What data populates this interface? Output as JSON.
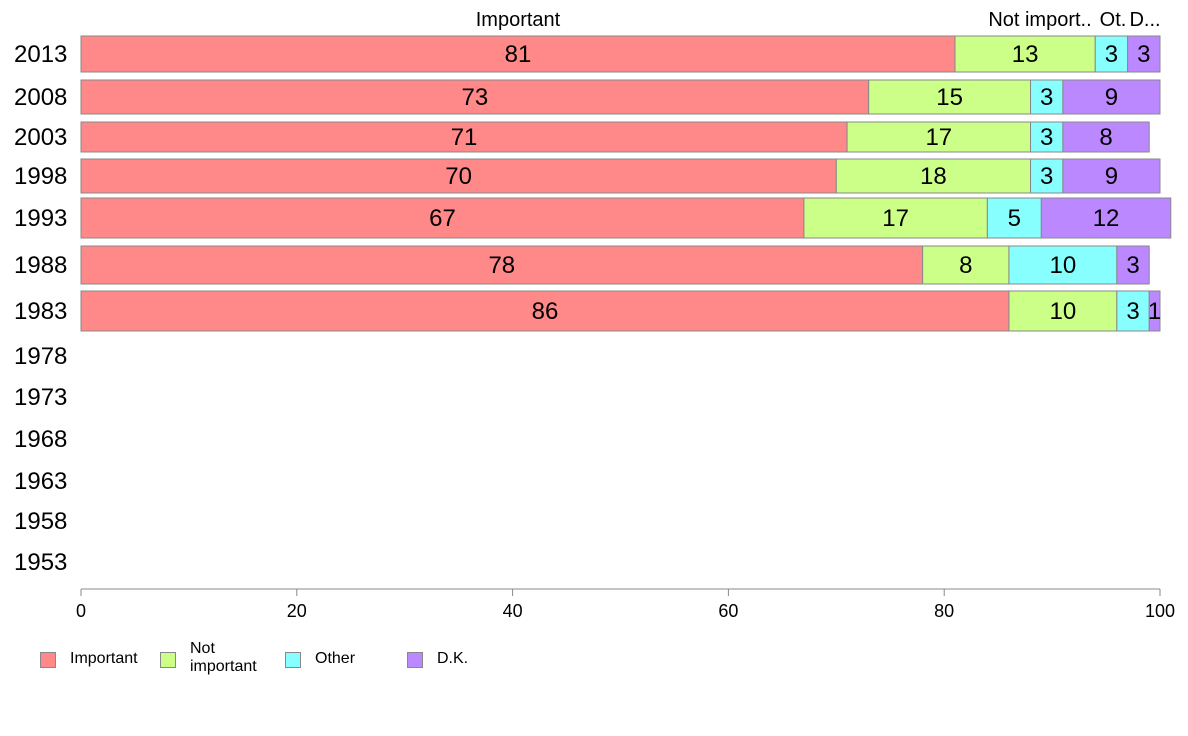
{
  "chart_data": {
    "type": "bar",
    "orientation": "horizontal",
    "stacked": true,
    "categories": [
      "2013",
      "2008",
      "2003",
      "1998",
      "1993",
      "1988",
      "1983",
      "1978",
      "1973",
      "1968",
      "1963",
      "1958",
      "1953"
    ],
    "series": [
      {
        "name": "Important",
        "color": "#ff8888",
        "values": [
          81,
          73,
          71,
          70,
          67,
          78,
          86,
          null,
          null,
          null,
          null,
          null,
          null
        ]
      },
      {
        "name": "Not important",
        "color": "#ccff88",
        "values": [
          13,
          15,
          17,
          18,
          17,
          8,
          10,
          null,
          null,
          null,
          null,
          null,
          null
        ]
      },
      {
        "name": "Other",
        "color": "#88ffff",
        "values": [
          3,
          3,
          3,
          3,
          5,
          10,
          3,
          null,
          null,
          null,
          null,
          null,
          null
        ]
      },
      {
        "name": "D.K.",
        "color": "#bb88ff",
        "values": [
          3,
          9,
          8,
          9,
          12,
          3,
          1,
          null,
          null,
          null,
          null,
          null,
          null
        ]
      }
    ],
    "column_headers": [
      "Important",
      "Not import..",
      "Ot.",
      "D..."
    ],
    "xlim": [
      0,
      100
    ],
    "xticks": [
      0,
      20,
      40,
      60,
      80,
      100
    ],
    "grid": false,
    "legend_position": "bottom",
    "legend_labels": [
      "Important",
      "Not\nimportant",
      "Other",
      "D.K."
    ]
  }
}
